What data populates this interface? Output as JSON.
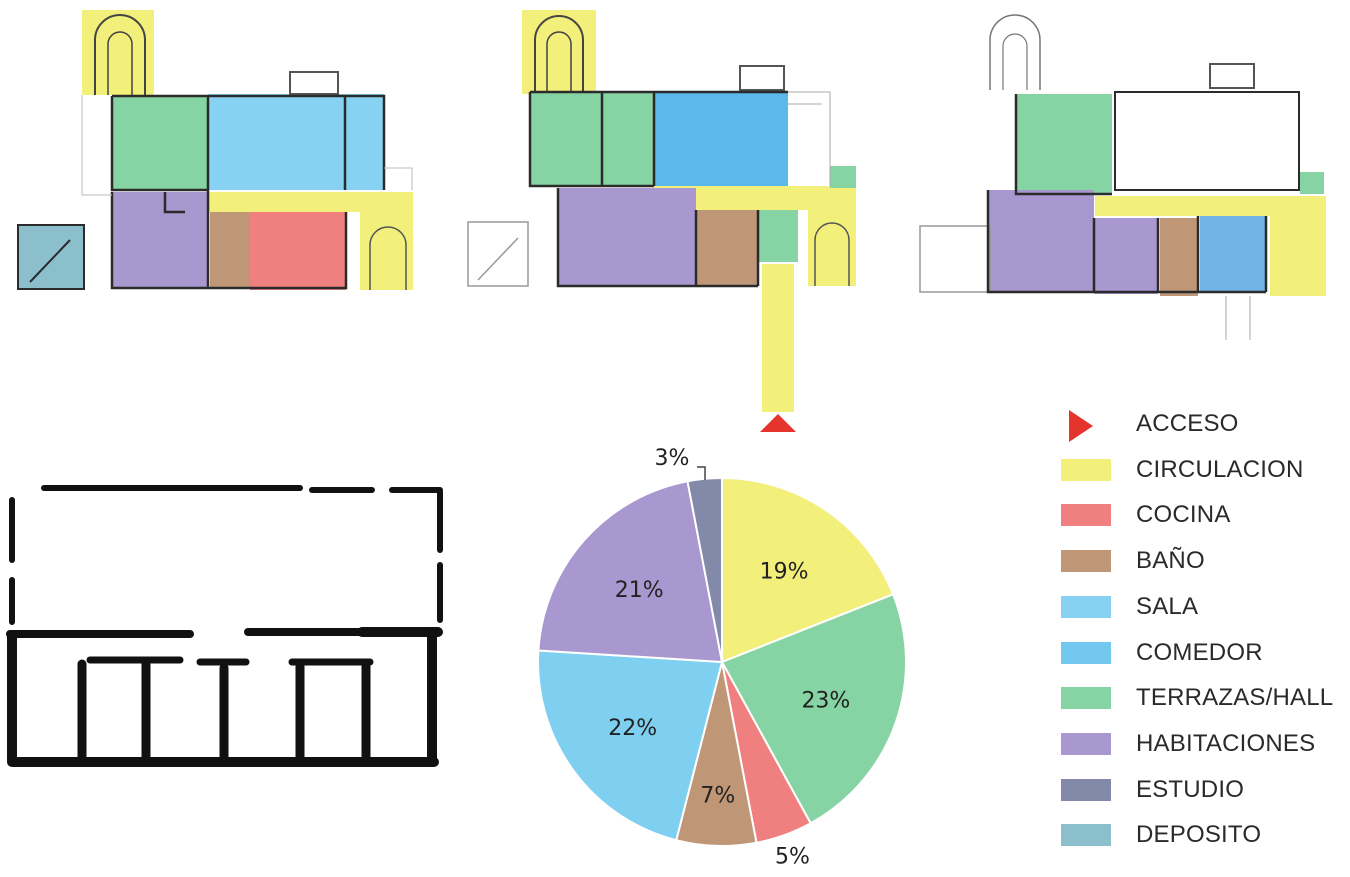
{
  "colors": {
    "circulacion": "#f2ef7a",
    "cocina": "#f08080",
    "bano": "#bf9777",
    "sala": "#87d2f2",
    "comedor": "#72c8ef",
    "terrazas": "#86d3a3",
    "habitaciones": "#a997cf",
    "estudio": "#8289a9",
    "deposito": "#8cbfcc",
    "acceso": "#e5342c",
    "wall": "#2b2b2b"
  },
  "legend": [
    {
      "label": "ACCESO",
      "icon": "acceso-marker-icon",
      "color": "#e5342c"
    },
    {
      "label": "CIRCULACION",
      "color": "#f2ef7a"
    },
    {
      "label": "COCINA",
      "color": "#f08080"
    },
    {
      "label": "BAÑO",
      "color": "#bf9777"
    },
    {
      "label": "SALA",
      "color": "#87d2f2"
    },
    {
      "label": "COMEDOR",
      "color": "#72c8ef"
    },
    {
      "label": "TERRAZAS/HALL",
      "color": "#86d3a3"
    },
    {
      "label": "HABITACIONES",
      "color": "#a997cf"
    },
    {
      "label": "ESTUDIO",
      "color": "#8289a9"
    },
    {
      "label": "DEPOSITO",
      "color": "#8cbfcc"
    }
  ],
  "chart_data": {
    "type": "pie",
    "slices": [
      {
        "label": "19%",
        "value": 19,
        "color": "#f2ef7a"
      },
      {
        "label": "23%",
        "value": 23,
        "color": "#86d3a3"
      },
      {
        "label": "5%",
        "value": 5,
        "color": "#f08080"
      },
      {
        "label": "7%",
        "value": 7,
        "color": "#bf9777"
      },
      {
        "label": "22%",
        "value": 22,
        "color": "#7fd0f0"
      },
      {
        "label": "21%",
        "value": 21,
        "color": "#a997cf"
      },
      {
        "label": "3%",
        "value": 3,
        "color": "#8289a9"
      }
    ]
  }
}
